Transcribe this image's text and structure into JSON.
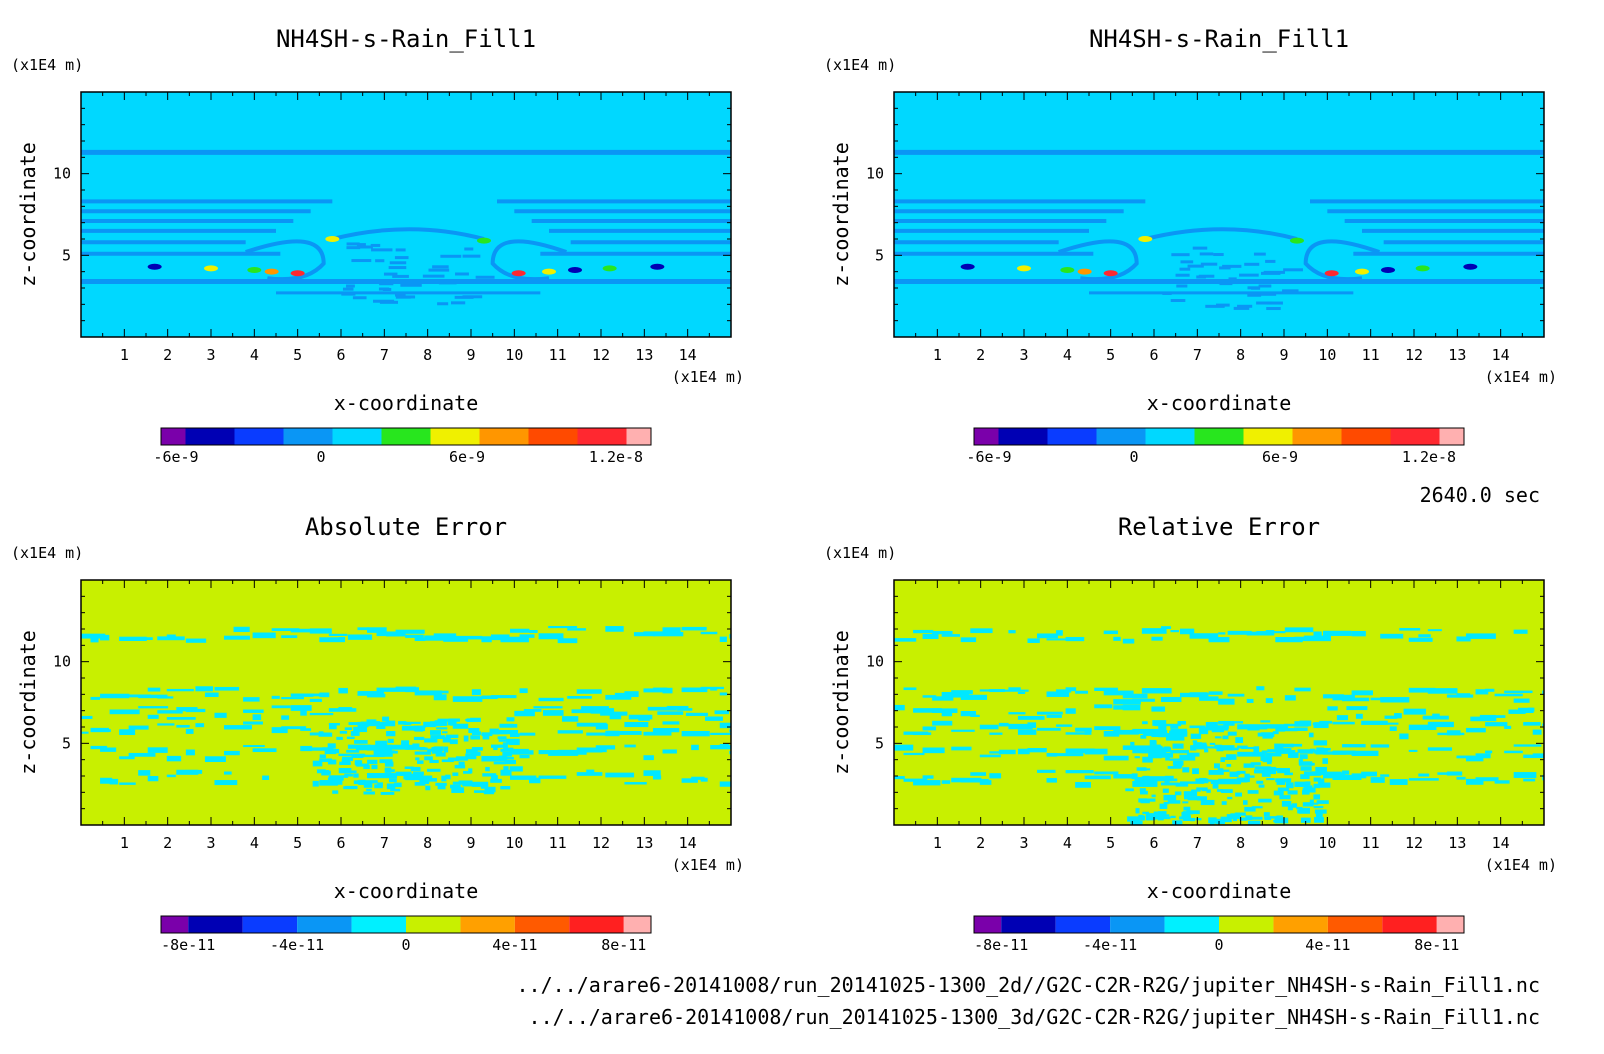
{
  "figure": {
    "time_label": "2640.0 sec",
    "files": [
      "../../arare6-20141008/run_20141025-1300_2d//G2C-C2R-R2G/jupiter_NH4SH-s-Rain_Fill1.nc",
      "../../arare6-20141008/run_20141025-1300_3d/G2C-C2R-R2G/jupiter_NH4SH-s-Rain_Fill1.nc"
    ]
  },
  "chart_data": [
    {
      "type": "heatmap",
      "title": "NH4SH-s-Rain_Fill1",
      "xlabel": "x-coordinate",
      "ylabel": "z-coordinate",
      "x_unit": "(x1E4 m)",
      "y_unit": "(x1E4 m)",
      "xlim": [
        0,
        15
      ],
      "ylim": [
        0,
        15
      ],
      "xticks": [
        "1",
        "2",
        "3",
        "4",
        "5",
        "6",
        "7",
        "8",
        "9",
        "10",
        "11",
        "12",
        "13",
        "14"
      ],
      "yticks": [
        "5",
        "10"
      ],
      "background_color": "#00d8ff",
      "layer_color": "#0a96f5",
      "colorbar": {
        "colors": [
          "#7a00aa",
          "#0000b4",
          "#0a3cff",
          "#0a96f5",
          "#00d8ff",
          "#28e61e",
          "#f0f000",
          "#ff9600",
          "#ff4a00",
          "#ff2830",
          "#ffb0b0"
        ],
        "ticks": [
          "-6e-9",
          "0",
          "6e-9",
          "1.2e-8"
        ]
      }
    },
    {
      "type": "heatmap",
      "title": "NH4SH-s-Rain_Fill1",
      "xlabel": "x-coordinate",
      "ylabel": "z-coordinate",
      "x_unit": "(x1E4 m)",
      "y_unit": "(x1E4 m)",
      "xlim": [
        0,
        15
      ],
      "ylim": [
        0,
        15
      ],
      "xticks": [
        "1",
        "2",
        "3",
        "4",
        "5",
        "6",
        "7",
        "8",
        "9",
        "10",
        "11",
        "12",
        "13",
        "14"
      ],
      "yticks": [
        "5",
        "10"
      ],
      "background_color": "#00d8ff",
      "layer_color": "#0a96f5",
      "colorbar": {
        "colors": [
          "#7a00aa",
          "#0000b4",
          "#0a3cff",
          "#0a96f5",
          "#00d8ff",
          "#28e61e",
          "#f0f000",
          "#ff9600",
          "#ff4a00",
          "#ff2830",
          "#ffb0b0"
        ],
        "ticks": [
          "-6e-9",
          "0",
          "6e-9",
          "1.2e-8"
        ]
      }
    },
    {
      "type": "heatmap",
      "title": "Absolute Error",
      "xlabel": "x-coordinate",
      "ylabel": "z-coordinate",
      "x_unit": "(x1E4 m)",
      "y_unit": "(x1E4 m)",
      "xlim": [
        0,
        15
      ],
      "ylim": [
        0,
        15
      ],
      "xticks": [
        "1",
        "2",
        "3",
        "4",
        "5",
        "6",
        "7",
        "8",
        "9",
        "10",
        "11",
        "12",
        "13",
        "14"
      ],
      "yticks": [
        "5",
        "10"
      ],
      "background_color": "#c8f000",
      "layer_color": "#00e8ff",
      "colorbar": {
        "colors": [
          "#7a00aa",
          "#0000b4",
          "#0a3cff",
          "#0a96f5",
          "#00f0ff",
          "#c8f000",
          "#ffa000",
          "#ff5a00",
          "#ff2020",
          "#ffb0b0"
        ],
        "ticks": [
          "-8e-11",
          "-4e-11",
          "0",
          "4e-11",
          "8e-11"
        ]
      }
    },
    {
      "type": "heatmap",
      "title": "Relative Error",
      "xlabel": "x-coordinate",
      "ylabel": "z-coordinate",
      "x_unit": "(x1E4 m)",
      "y_unit": "(x1E4 m)",
      "xlim": [
        0,
        15
      ],
      "ylim": [
        0,
        15
      ],
      "xticks": [
        "1",
        "2",
        "3",
        "4",
        "5",
        "6",
        "7",
        "8",
        "9",
        "10",
        "11",
        "12",
        "13",
        "14"
      ],
      "yticks": [
        "5",
        "10"
      ],
      "background_color": "#c8f000",
      "layer_color": "#00e8ff",
      "colorbar": {
        "colors": [
          "#7a00aa",
          "#0000b4",
          "#0a3cff",
          "#0a96f5",
          "#00f0ff",
          "#c8f000",
          "#ffa000",
          "#ff5a00",
          "#ff2020",
          "#ffb0b0"
        ],
        "ticks": [
          "-8e-11",
          "-4e-11",
          "0",
          "4e-11",
          "8e-11"
        ]
      }
    }
  ]
}
